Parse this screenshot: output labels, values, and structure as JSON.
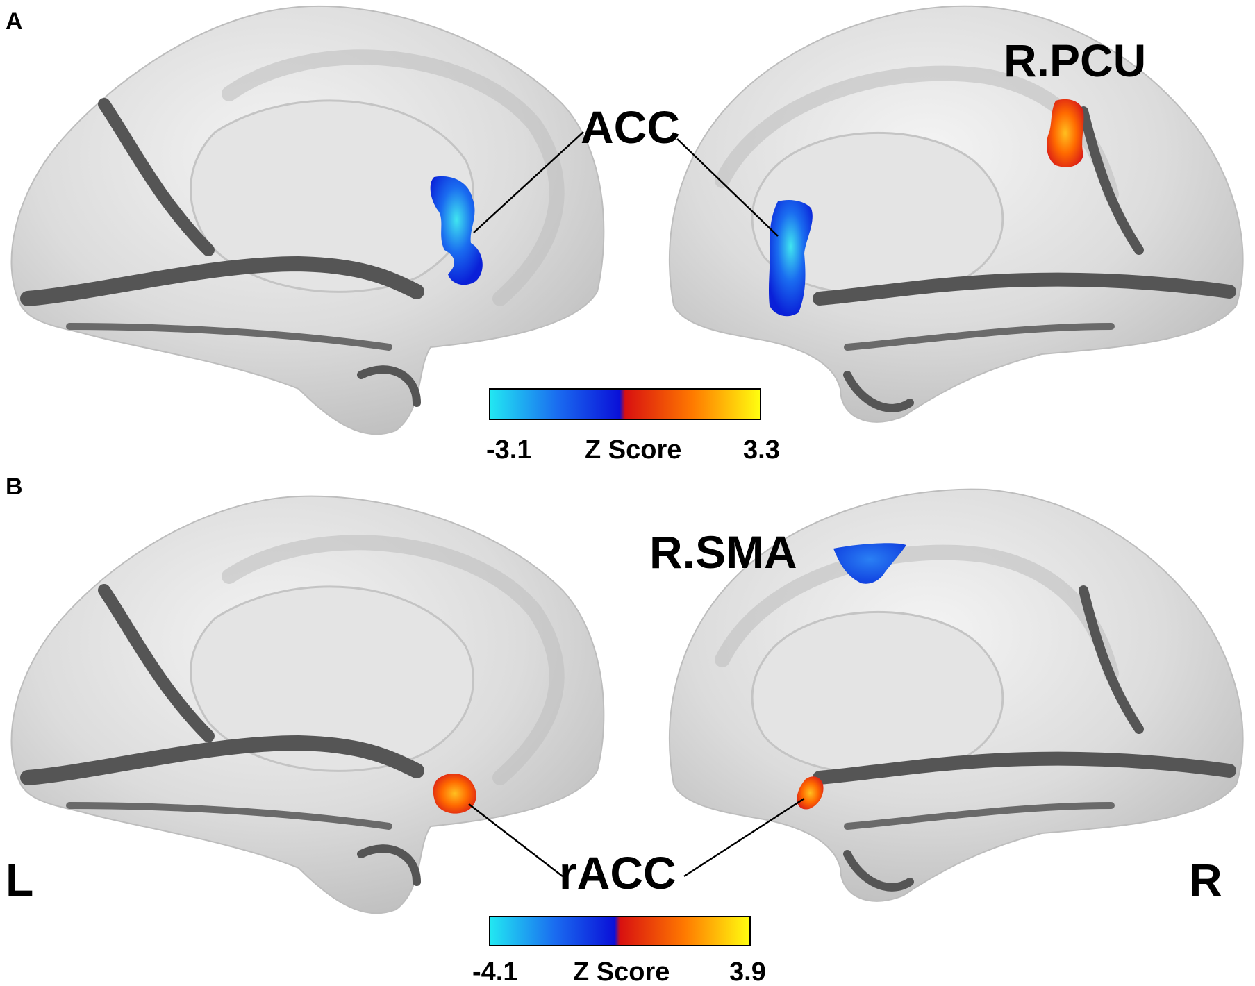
{
  "panel_labels": {
    "a": "A",
    "b": "B"
  },
  "hemisphere_labels": {
    "left": "L",
    "right": "R"
  },
  "panel_a": {
    "regions": {
      "acc": "ACC",
      "r_pcu": "R.PCU"
    },
    "colorbar": {
      "min_label": "-3.1",
      "title": "Z Score",
      "max_label": "3.3",
      "colors": [
        "#22e8f2",
        "#1a6cf0",
        "#0a10d8",
        "#d81010",
        "#ff7a00",
        "#ffff10"
      ]
    }
  },
  "panel_b": {
    "regions": {
      "r_sma": "R.SMA",
      "racc": "rACC"
    },
    "colorbar": {
      "min_label": "-4.1",
      "title": "Z Score",
      "max_label": "3.9",
      "colors": [
        "#22e8f2",
        "#1a6cf0",
        "#0a10d8",
        "#d81010",
        "#ff7a00",
        "#ffff10"
      ]
    }
  },
  "colors": {
    "brain_base": "#d6d6d6",
    "brain_shadow": "#555555",
    "negative": "#1a55e8",
    "positive": "#e63a10"
  }
}
